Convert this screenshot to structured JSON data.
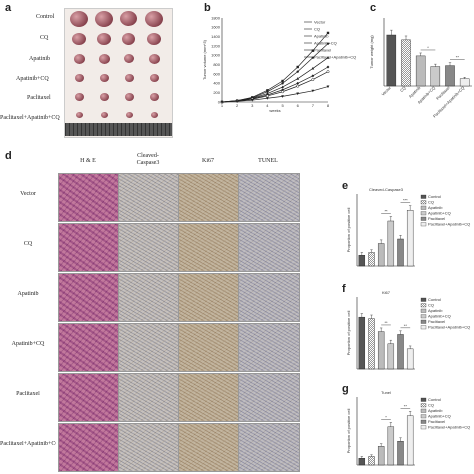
{
  "panels": {
    "a": "a",
    "b": "b",
    "c": "c",
    "d": "d",
    "e": "e",
    "f": "f",
    "g": "g"
  },
  "panel_a": {
    "rows": [
      "Control",
      "CQ",
      "Apatinib",
      "Apatinib+CQ",
      "Paclitaxel",
      "Paclitaxel+Apatinib+CQ"
    ]
  },
  "panel_d": {
    "columns": [
      "H & E",
      "Cleaved-\nCaspase3",
      "Ki67",
      "TUNEL"
    ],
    "rows": [
      "Vector",
      "CQ",
      "Apatinib",
      "Apatinib+CQ",
      "Paclitaxel",
      "Paclitaxel+Apatinib+CQ"
    ]
  },
  "colors": {
    "line": "#222222",
    "he": "#b0608c"
  },
  "chart_data": [
    {
      "panel": "b",
      "type": "line",
      "xlabel": "weeks",
      "ylabel": "Tumor volume (mm^3)",
      "x": [
        1,
        2,
        3,
        4,
        5,
        6,
        7,
        8
      ],
      "ylim": [
        0,
        1800
      ],
      "yticks": [
        0,
        200,
        400,
        600,
        800,
        1000,
        1200,
        1400,
        1600,
        1800
      ],
      "series": [
        {
          "name": "Vector",
          "values": [
            0,
            30,
            100,
            250,
            450,
            750,
            1100,
            1480
          ],
          "marker": "square"
        },
        {
          "name": "CQ",
          "values": [
            0,
            30,
            90,
            220,
            400,
            650,
            950,
            1250
          ],
          "marker": "circle"
        },
        {
          "name": "Apatinib",
          "values": [
            0,
            25,
            80,
            180,
            320,
            500,
            720,
            950
          ],
          "marker": "triangle"
        },
        {
          "name": "Apatinib+CQ",
          "values": [
            0,
            22,
            70,
            150,
            260,
            400,
            560,
            750
          ],
          "marker": "diamond"
        },
        {
          "name": "Paclitaxel",
          "values": [
            0,
            20,
            60,
            130,
            220,
            340,
            480,
            650
          ],
          "marker": "circle-open"
        },
        {
          "name": "Paclitaxel+Apatinib+CQ",
          "values": [
            0,
            15,
            40,
            80,
            120,
            180,
            240,
            330
          ],
          "marker": "triangle-down"
        }
      ]
    },
    {
      "panel": "c",
      "type": "bar",
      "ylabel": "Tumor weight (mg)",
      "categories": [
        "Vector",
        "CQ",
        "Apatinib",
        "Apatinib+CQ",
        "Paclitaxel",
        "Paclitaxel+Apatinib+CQ"
      ],
      "values": [
        1.05,
        0.95,
        0.62,
        0.4,
        0.42,
        0.15
      ],
      "errors": [
        0.1,
        0.08,
        0.06,
        0.05,
        0.06,
        0.03
      ],
      "ylim": [
        0,
        1.4
      ],
      "annotations": [
        "*",
        "**"
      ]
    },
    {
      "panel": "e",
      "type": "bar",
      "title": "Cleaved-Caspase3",
      "ylabel": "Proportion of positive cell",
      "categories": [
        "Control",
        "CQ",
        "Apatinib",
        "Apatinib+CQ",
        "Paclitaxel",
        "Paclitaxel+Apatinib+CQ"
      ],
      "values": [
        0.12,
        0.15,
        0.25,
        0.5,
        0.3,
        0.62
      ],
      "errors": [
        0.03,
        0.03,
        0.04,
        0.05,
        0.04,
        0.05
      ],
      "ylim": [
        0,
        0.8
      ],
      "annotations": [
        "**",
        "***"
      ]
    },
    {
      "panel": "f",
      "type": "bar",
      "title": "Ki67",
      "ylabel": "Proportion of positive cell",
      "categories": [
        "Control",
        "CQ",
        "Apatinib",
        "Apatinib+CQ",
        "Paclitaxel",
        "Paclitaxel+Apatinib+CQ"
      ],
      "values": [
        0.72,
        0.7,
        0.52,
        0.35,
        0.48,
        0.28
      ],
      "errors": [
        0.05,
        0.05,
        0.05,
        0.05,
        0.05,
        0.04
      ],
      "ylim": [
        0,
        1.0
      ],
      "annotations": [
        "**",
        "**"
      ]
    },
    {
      "panel": "g",
      "type": "bar",
      "title": "Tunel",
      "ylabel": "Proportion of positive cell",
      "categories": [
        "Control",
        "CQ",
        "Apatinib",
        "Apatinib+CQ",
        "Paclitaxel",
        "Paclitaxel+Apatinib+CQ"
      ],
      "values": [
        0.08,
        0.1,
        0.22,
        0.45,
        0.28,
        0.58
      ],
      "errors": [
        0.02,
        0.02,
        0.03,
        0.05,
        0.04,
        0.05
      ],
      "ylim": [
        0,
        0.8
      ],
      "annotations": [
        "*",
        "**"
      ]
    }
  ]
}
